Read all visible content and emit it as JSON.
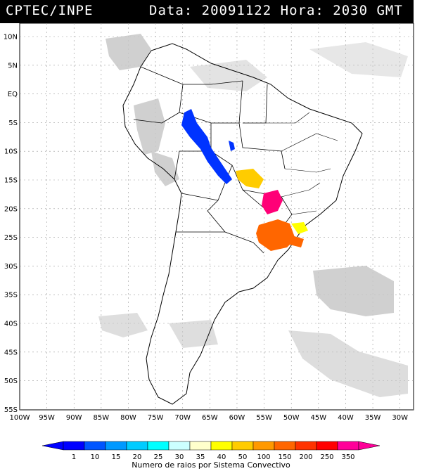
{
  "header": {
    "title": "CPTEC/INPE",
    "date_label": "Data:",
    "date": "20091122",
    "time_label": "Hora:",
    "time": "2030 GMT"
  },
  "map": {
    "lon_labels": [
      "100W",
      "95W",
      "90W",
      "85W",
      "80W",
      "75W",
      "70W",
      "65W",
      "60W",
      "55W",
      "50W",
      "45W",
      "40W",
      "35W",
      "30W"
    ],
    "lat_labels": [
      "10N",
      "5N",
      "EQ",
      "5S",
      "10S",
      "15S",
      "20S",
      "25S",
      "30S",
      "35S",
      "40S",
      "45S",
      "50S",
      "55S"
    ]
  },
  "legend": {
    "title": "Numero de raios por Sistema Convectivo",
    "ticks": [
      "1",
      "10",
      "15",
      "20",
      "25",
      "30",
      "35",
      "40",
      "50",
      "100",
      "150",
      "200",
      "250",
      "350"
    ],
    "colors": [
      "#0000ff",
      "#0055ff",
      "#0099ff",
      "#00ccff",
      "#00ffff",
      "#ccffff",
      "#ffffcc",
      "#ffff00",
      "#ffcc00",
      "#ff9900",
      "#ff6600",
      "#ff3300",
      "#ff0000",
      "#ff0099"
    ]
  }
}
